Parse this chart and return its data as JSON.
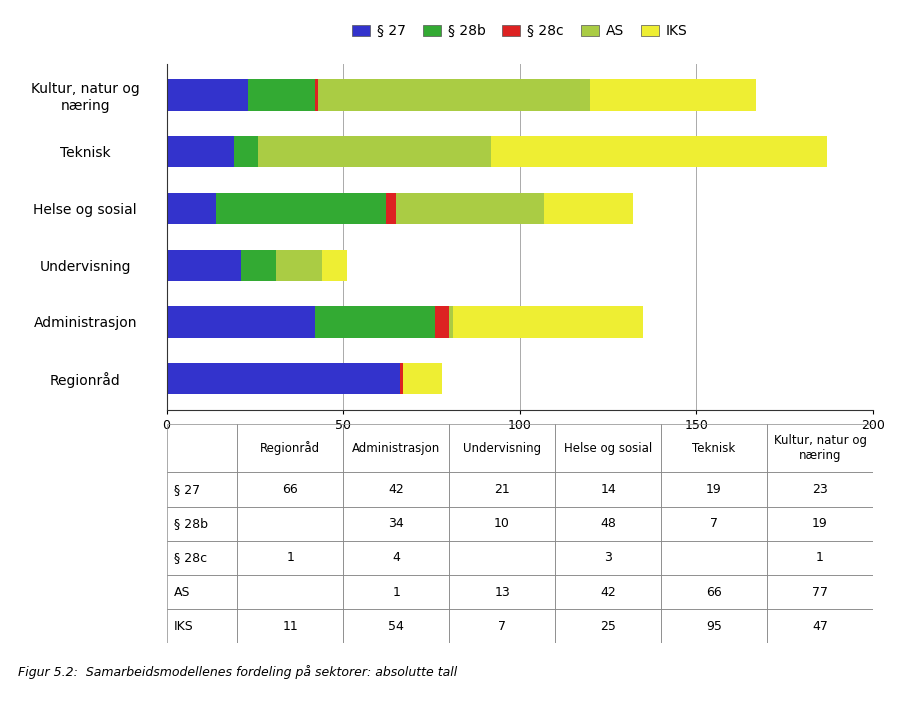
{
  "categories": [
    "Regionråd",
    "Administrasjon",
    "Undervisning",
    "Helse og sosial",
    "Teknisk",
    "Kultur, natur og\nnæring"
  ],
  "series": {
    "§ 27": [
      66,
      42,
      21,
      14,
      19,
      23
    ],
    "§ 28b": [
      0,
      34,
      10,
      48,
      7,
      19
    ],
    "§ 28c": [
      1,
      4,
      0,
      3,
      0,
      1
    ],
    "AS": [
      0,
      1,
      13,
      42,
      66,
      77
    ],
    "IKS": [
      11,
      54,
      7,
      25,
      95,
      47
    ]
  },
  "colors": {
    "§ 27": "#3333cc",
    "§ 28b": "#33aa33",
    "§ 28c": "#dd2222",
    "AS": "#aacc44",
    "IKS": "#eeee33"
  },
  "legend_labels": [
    "§ 27",
    "§ 28b",
    "§ 28c",
    "AS",
    "IKS"
  ],
  "xlim": [
    0,
    200
  ],
  "xticks": [
    0,
    50,
    100,
    150,
    200
  ],
  "table_col_headers": [
    "Regionråd",
    "Administrasjon",
    "Undervisning",
    "Helse og sosial",
    "Teknisk",
    "Kultur, natur og\nnæring"
  ],
  "table_row_headers": [
    "§ 27",
    "§ 28b",
    "§ 28c",
    "AS",
    "IKS"
  ],
  "table_data": [
    [
      "66",
      "42",
      "21",
      "14",
      "19",
      "23"
    ],
    [
      "",
      "34",
      "10",
      "48",
      "7",
      "19"
    ],
    [
      "1",
      "4",
      "",
      "3",
      "",
      "1"
    ],
    [
      "",
      "1",
      "13",
      "42",
      "66",
      "77"
    ],
    [
      "11",
      "54",
      "7",
      "25",
      "95",
      "47"
    ]
  ],
  "caption": "Figur 5.2:  Samarbeidsmodellenes fordeling på sektorer: absolutte tall",
  "bg_color": "#ffffff"
}
